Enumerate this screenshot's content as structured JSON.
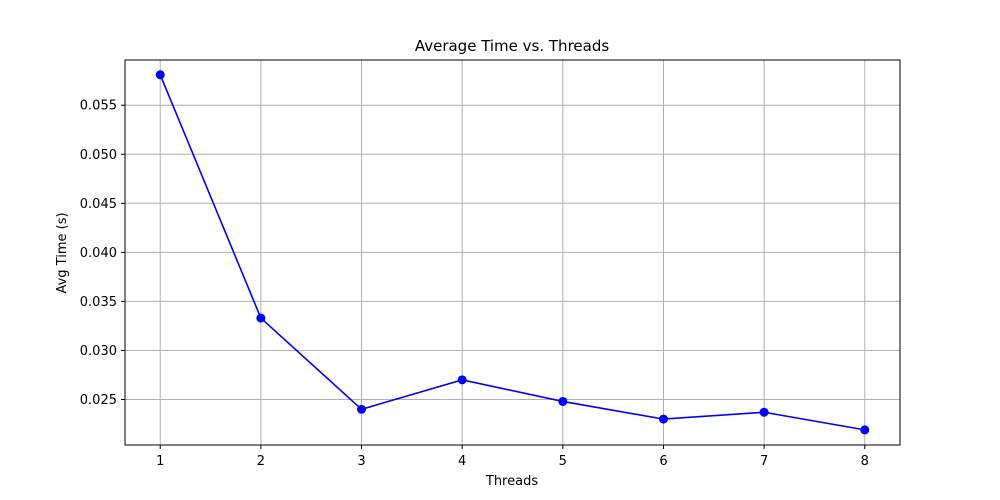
{
  "chart_data": {
    "type": "line",
    "title": "Average Time vs. Threads",
    "xlabel": "Threads",
    "ylabel": "Avg Time (s)",
    "x": [
      1,
      2,
      3,
      4,
      5,
      6,
      7,
      8
    ],
    "series": [
      {
        "values": [
          0.0581,
          0.0333,
          0.024,
          0.027,
          0.0248,
          0.023,
          0.0237,
          0.0219
        ],
        "color": "#0000ff",
        "marker": "circle"
      }
    ],
    "xticks": [
      1,
      2,
      3,
      4,
      5,
      6,
      7,
      8
    ],
    "xtick_labels": [
      "1",
      "2",
      "3",
      "4",
      "5",
      "6",
      "7",
      "8"
    ],
    "yticks": [
      0.025,
      0.03,
      0.035,
      0.04,
      0.045,
      0.05,
      0.055
    ],
    "ytick_labels": [
      "0.025",
      "0.030",
      "0.035",
      "0.040",
      "0.045",
      "0.050",
      "0.055"
    ],
    "xlim": [
      0.65,
      8.35
    ],
    "ylim": [
      0.02036,
      0.05961
    ],
    "grid": true,
    "grid_color": "#b0b0b0",
    "axis_color": "#000000"
  }
}
